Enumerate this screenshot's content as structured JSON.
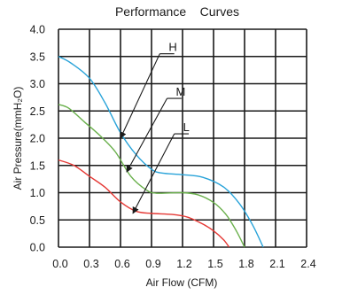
{
  "chart_data": {
    "type": "line",
    "title": "Performance    Curves",
    "xlabel": "Air Flow (CFM)",
    "ylabel": "Air Pressure(mmH₂O)",
    "xlim": [
      0,
      2.4
    ],
    "ylim": [
      0,
      4.0
    ],
    "x_ticks": [
      "0.0",
      "0.3",
      "0.6",
      "0.9",
      "1.2",
      "1.5",
      "1.8",
      "2.1",
      "2.4"
    ],
    "y_ticks": [
      "0.0",
      "0.5",
      "1.0",
      "1.5",
      "2.0",
      "2.5",
      "3.0",
      "3.5",
      "4.0"
    ],
    "grid": true,
    "series": [
      {
        "name": "H",
        "color": "#29a3d9",
        "points": [
          [
            0.0,
            3.5
          ],
          [
            0.12,
            3.38
          ],
          [
            0.3,
            3.1
          ],
          [
            0.45,
            2.65
          ],
          [
            0.6,
            2.1
          ],
          [
            0.75,
            1.7
          ],
          [
            0.9,
            1.43
          ],
          [
            1.0,
            1.36
          ],
          [
            1.2,
            1.33
          ],
          [
            1.4,
            1.28
          ],
          [
            1.6,
            1.1
          ],
          [
            1.75,
            0.8
          ],
          [
            1.88,
            0.4
          ],
          [
            1.98,
            0.0
          ]
        ]
      },
      {
        "name": "M",
        "color": "#6ab04c",
        "points": [
          [
            0.0,
            2.62
          ],
          [
            0.1,
            2.55
          ],
          [
            0.25,
            2.3
          ],
          [
            0.4,
            2.05
          ],
          [
            0.55,
            1.75
          ],
          [
            0.7,
            1.3
          ],
          [
            0.85,
            1.05
          ],
          [
            0.95,
            0.99
          ],
          [
            1.2,
            1.0
          ],
          [
            1.35,
            0.96
          ],
          [
            1.5,
            0.82
          ],
          [
            1.62,
            0.6
          ],
          [
            1.72,
            0.3
          ],
          [
            1.8,
            0.0
          ]
        ]
      },
      {
        "name": "L",
        "color": "#e53935",
        "points": [
          [
            0.0,
            1.6
          ],
          [
            0.15,
            1.5
          ],
          [
            0.3,
            1.3
          ],
          [
            0.45,
            1.1
          ],
          [
            0.6,
            0.83
          ],
          [
            0.75,
            0.66
          ],
          [
            0.9,
            0.62
          ],
          [
            1.1,
            0.6
          ],
          [
            1.25,
            0.55
          ],
          [
            1.4,
            0.42
          ],
          [
            1.5,
            0.3
          ],
          [
            1.6,
            0.13
          ],
          [
            1.65,
            0.0
          ]
        ]
      }
    ],
    "annotations": [
      {
        "text": "H",
        "label_at": [
          0.98,
          3.55
        ],
        "underline_to": 1.12,
        "arrow_to": [
          0.6,
          2.0
        ]
      },
      {
        "text": "M",
        "label_at": [
          1.05,
          2.73
        ],
        "underline_to": 1.19,
        "arrow_to": [
          0.66,
          1.38
        ]
      },
      {
        "text": "L",
        "label_at": [
          1.12,
          2.08
        ],
        "underline_to": 1.26,
        "arrow_to": [
          0.72,
          0.62
        ]
      }
    ]
  }
}
